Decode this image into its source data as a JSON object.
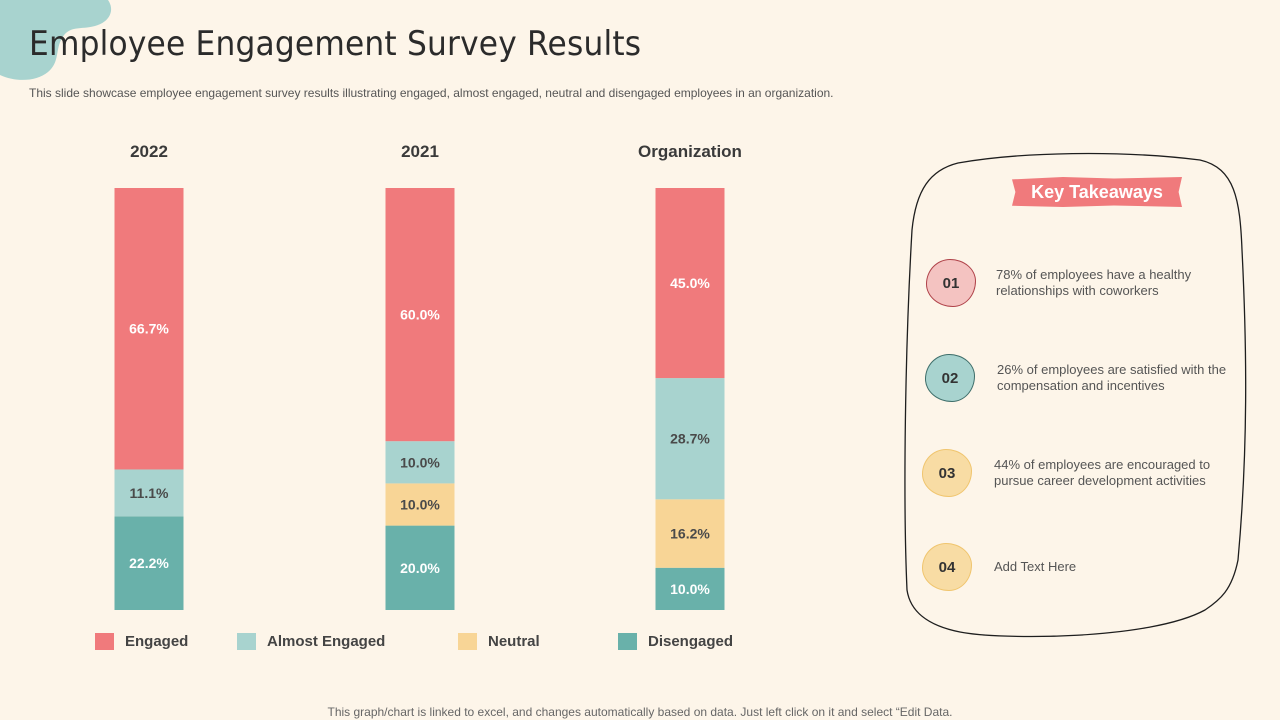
{
  "header": {
    "title": "Employee Engagement Survey Results",
    "subtitle": "This slide showcase employee engagement survey results illustrating engaged, almost engaged, neutral and disengaged employees in an organization."
  },
  "colors": {
    "engaged": "#f07a7c",
    "almost_engaged": "#a8d3cf",
    "neutral": "#f8d596",
    "disengaged": "#69b1aa",
    "blob": "#a8d3cf"
  },
  "chart_data": {
    "type": "bar",
    "stacked": true,
    "title": "",
    "xlabel": "",
    "ylabel": "",
    "ylim": [
      0,
      100
    ],
    "unit": "%",
    "categories": [
      "2022",
      "2021",
      "Organization"
    ],
    "series": [
      {
        "name": "Disengaged",
        "values": [
          22.2,
          20.0,
          10.0
        ],
        "labels": [
          "22.2%",
          "20.0%",
          "10.0%"
        ]
      },
      {
        "name": "Neutral",
        "values": [
          0,
          10.0,
          16.2
        ],
        "labels": [
          "",
          "10.0%",
          "16.2%"
        ]
      },
      {
        "name": "Almost Engaged",
        "values": [
          11.1,
          10.0,
          28.7
        ],
        "labels": [
          "11.1%",
          "10.0%",
          "28.7%"
        ]
      },
      {
        "name": "Engaged",
        "values": [
          66.7,
          60.0,
          45.0
        ],
        "labels": [
          "66.7%",
          "60.0%",
          "45.0%"
        ]
      }
    ],
    "legend": {
      "position": "bottom",
      "entries": [
        "Engaged",
        "Almost Engaged",
        "Neutral",
        "Disengaged"
      ]
    },
    "grid": false
  },
  "takeaways": {
    "title": "Key Takeaways",
    "items": [
      {
        "number": "01",
        "text": "78% of employees have a healthy relationships with coworkers",
        "color": "#f4c3c1",
        "border": "#b0434a"
      },
      {
        "number": "02",
        "text": "26% of employees are satisfied with the compensation and incentives",
        "color": "#a8d3cf",
        "border": "#3e6e6a"
      },
      {
        "number": "03",
        "text": "44% of employees are encouraged to pursue career development  activities",
        "color": "#f8dca4",
        "border": "#f0c56e"
      },
      {
        "number": "04",
        "text": "Add Text Here",
        "color": "#f8dca4",
        "border": "#f0c56e"
      }
    ]
  },
  "footer": {
    "note": "This graph/chart is linked to excel,  and changes automatically based on data. Just left click on it and select “Edit Data."
  }
}
